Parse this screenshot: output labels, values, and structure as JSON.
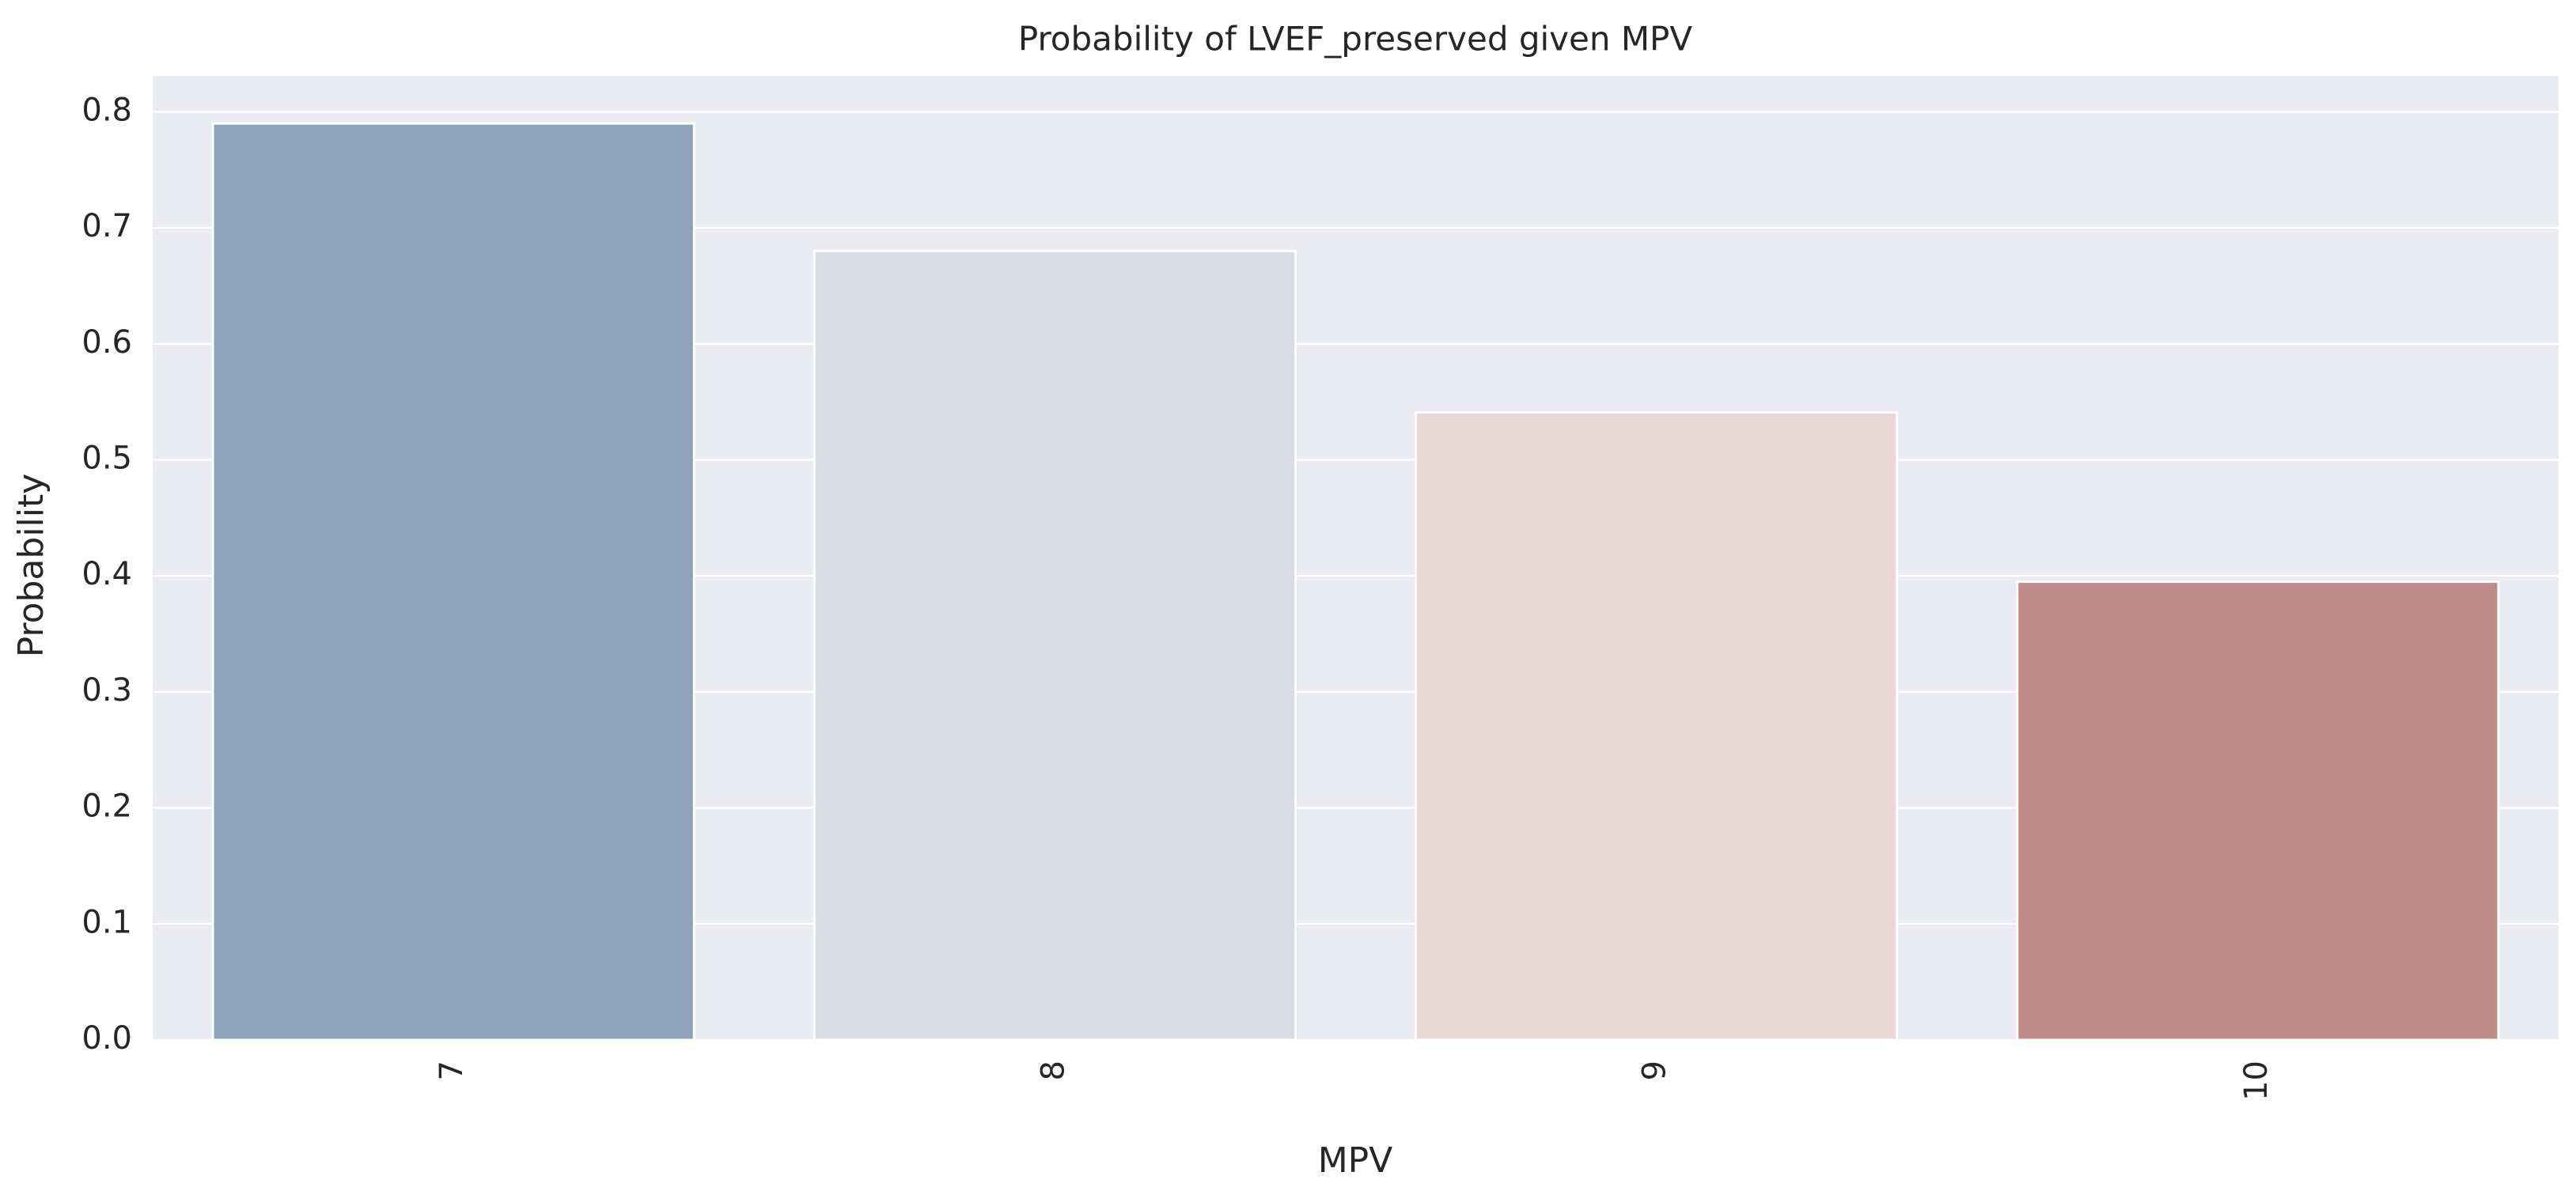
{
  "chart_data": {
    "type": "bar",
    "title": "Probability of LVEF_preserved given MPV",
    "x_label": "MPV",
    "y_label": "Probability",
    "categories": [
      "7",
      "8",
      "9",
      "10"
    ],
    "values": [
      0.79,
      0.68,
      0.541,
      0.395
    ],
    "colors": [
      "#8da2bb",
      "#d9dce4",
      "#e9d6d6",
      "#c08b87"
    ],
    "ylim": [
      0,
      0.831
    ],
    "yticks": [
      {
        "value": 0,
        "label": "0.0"
      },
      0.1,
      0.2,
      0.3,
      0.4,
      0.5,
      0.6,
      0.7,
      0.8
    ],
    "grid": true
  }
}
